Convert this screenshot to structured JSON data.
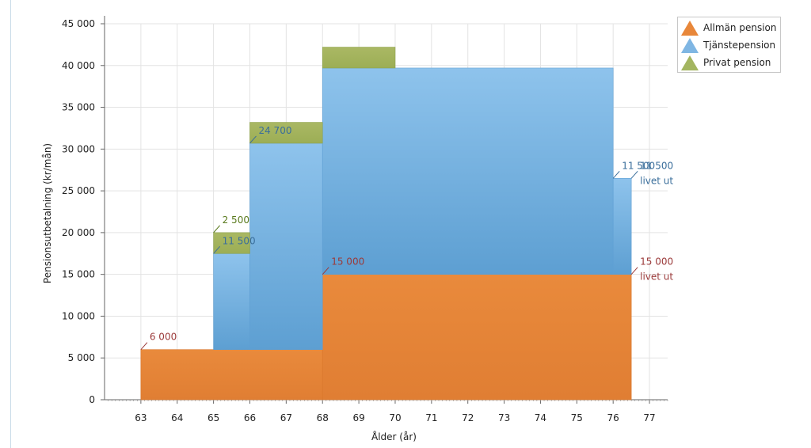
{
  "chart_data": {
    "type": "area",
    "stacked": true,
    "step": true,
    "xlabel": "Ålder (år)",
    "ylabel": "Pensionsutbetalning (kr/mån)",
    "xlim": [
      62,
      77.5
    ],
    "ylim": [
      0,
      45000
    ],
    "x_ticks": [
      "63",
      "64",
      "65",
      "66",
      "67",
      "68",
      "69",
      "70",
      "71",
      "72",
      "73",
      "74",
      "75",
      "76",
      "77"
    ],
    "y_ticks": [
      "0",
      "5 000",
      "10 000",
      "15 000",
      "20 000",
      "25 000",
      "30 000",
      "35 000",
      "40 000",
      "45 000"
    ],
    "grid": true,
    "legend_position": "top-right",
    "series": [
      {
        "name": "Allmän pension",
        "color": "#e8873a",
        "segments": [
          {
            "from": 63,
            "to": 68,
            "value": 6000
          },
          {
            "from": 68,
            "to": 76.5,
            "value": 15000
          }
        ]
      },
      {
        "name": "Tjänstepension",
        "color": "#7fb6e3",
        "segments": [
          {
            "from": 65,
            "to": 66,
            "value": 11500
          },
          {
            "from": 66,
            "to": 68,
            "value": 24700
          },
          {
            "from": 68,
            "to": 76,
            "value": 24700
          },
          {
            "from": 76,
            "to": 76.5,
            "value": 11500
          }
        ]
      },
      {
        "name": "Privat pension",
        "color": "#a3b560",
        "segments": [
          {
            "from": 65,
            "to": 66,
            "value": 2500
          },
          {
            "from": 66,
            "to": 68,
            "value": 2500
          },
          {
            "from": 68,
            "to": 70,
            "value": 2500
          }
        ]
      }
    ],
    "annotations": [
      {
        "x": 63,
        "y": 6000,
        "lines": [
          "6 000"
        ],
        "color": "#9b3a3a"
      },
      {
        "x": 65,
        "y": 17500,
        "lines": [
          "11 500"
        ],
        "color": "#3a6e9b"
      },
      {
        "x": 65,
        "y": 20000,
        "lines": [
          "2 500"
        ],
        "color": "#5a7a1e"
      },
      {
        "x": 66,
        "y": 30700,
        "lines": [
          "24 700"
        ],
        "color": "#3a6e9b"
      },
      {
        "x": 68,
        "y": 15000,
        "lines": [
          "15 000"
        ],
        "color": "#9b3a3a"
      },
      {
        "x": 76,
        "y": 26500,
        "lines": [
          "11 500"
        ],
        "color": "#3a6e9b"
      },
      {
        "x": 76.5,
        "y": 26500,
        "lines": [
          "11 500",
          "livet ut"
        ],
        "color": "#3a6e9b"
      },
      {
        "x": 76.5,
        "y": 15000,
        "lines": [
          "15 000",
          "livet ut"
        ],
        "color": "#9b3a3a"
      }
    ]
  }
}
